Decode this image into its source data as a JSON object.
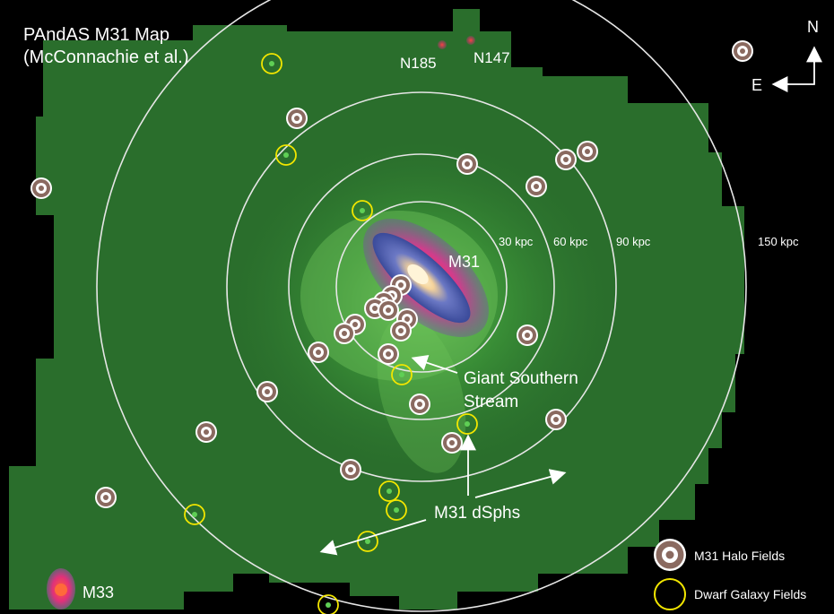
{
  "title": {
    "line1": "PAndAS M31 Map",
    "line2": "(McConnachie et al.)"
  },
  "compass": {
    "north": "N",
    "east": "E"
  },
  "rings": [
    {
      "label": "30 kpc"
    },
    {
      "label": "60 kpc"
    },
    {
      "label": "90 kpc"
    },
    {
      "label": "150 kpc"
    }
  ],
  "objects": {
    "m31": "M31",
    "n185": "N185",
    "n147": "N147",
    "m33": "M33"
  },
  "annotations": {
    "stream_line1": "Giant Southern",
    "stream_line2": "Stream",
    "dsphs": "M31 dSphs"
  },
  "legend": {
    "halo": "M31 Halo Fields",
    "dwarf": "Dwarf Galaxy Fields"
  },
  "colors": {
    "background": "#000000",
    "survey_green": "#2f7a30",
    "halo_marker_fill": "#8a6a60",
    "halo_marker_ring": "#ffffff",
    "dwarf_marker": "#f2e600",
    "galaxy_core": "#f4d29a",
    "galaxy_disk": "#4a5bb0",
    "galaxy_halo": "#d23c8c"
  }
}
